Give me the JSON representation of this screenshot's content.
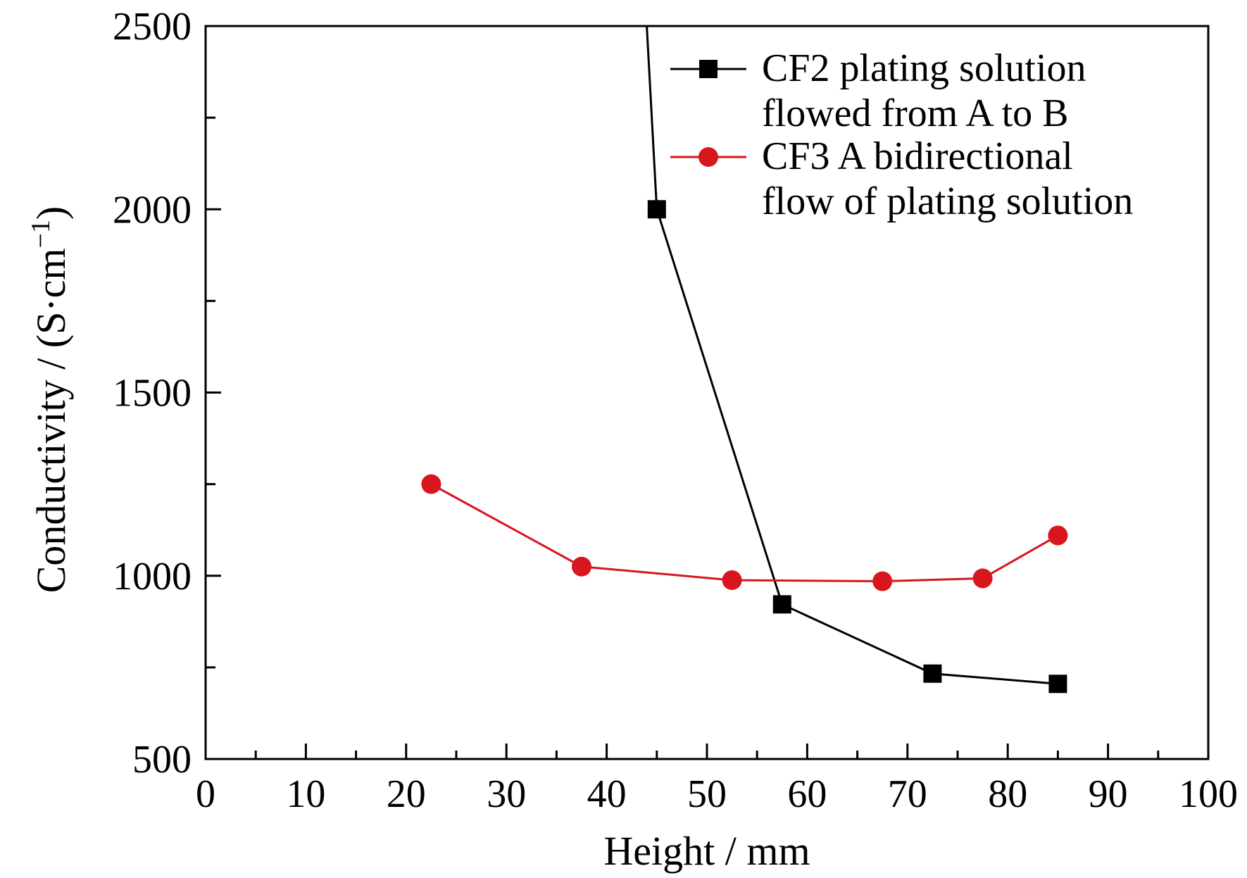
{
  "chart_data": {
    "type": "line",
    "xlabel": "Height / mm",
    "ylabel": "Conductivity / (S·cm",
    "ylabel_sup": "−1",
    "ylabel_end": ")",
    "xlim": [
      0,
      100
    ],
    "ylim": [
      500,
      2500
    ],
    "x_ticks": [
      "0",
      "10",
      "20",
      "30",
      "40",
      "50",
      "60",
      "70",
      "80",
      "90",
      "100"
    ],
    "y_ticks": [
      "500",
      "1000",
      "1500",
      "2000",
      "2500"
    ],
    "grid": false,
    "legend_position": "top-right",
    "series": [
      {
        "name": "CF2 plating solution flowed from A to B",
        "legend_lines": [
          "CF2 plating solution",
          "flowed from A to B"
        ],
        "color": "#000000",
        "marker": "square",
        "x": [
          44.0,
          45.0,
          57.5,
          72.5,
          85.0
        ],
        "y": [
          2500,
          2000,
          922,
          733,
          705
        ]
      },
      {
        "name": "CF3 A bidirectional flow of plating solution",
        "legend_lines": [
          "CF3 A bidirectional",
          "flow of plating solution"
        ],
        "color": "#d7161d",
        "marker": "circle",
        "x": [
          22.5,
          37.5,
          52.5,
          67.5,
          77.5,
          85.0
        ],
        "y": [
          1250,
          1025,
          988,
          985,
          993,
          1110
        ]
      }
    ]
  }
}
